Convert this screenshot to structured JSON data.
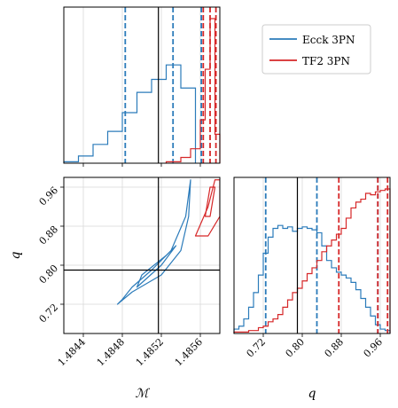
{
  "colors": {
    "eccK": "#2b7bba",
    "tf2": "#d62728",
    "truth": "#000000",
    "grid": "#d9d9d9"
  },
  "legend": {
    "items": [
      {
        "label": "Ecck 3PN",
        "color": "#2b7bba"
      },
      {
        "label": "TF2 3PN",
        "color": "#d62728"
      }
    ],
    "placement": "upper-right-panel"
  },
  "chart_data": [
    {
      "type": "histogram",
      "panel": "M marginal",
      "xlim": [
        1.4842,
        1.4858
      ],
      "xticks": [
        1.4844,
        1.4848,
        1.4852,
        1.4856
      ],
      "grid": true,
      "truth": 1.48517,
      "series": [
        {
          "name": "Eccck 3PN",
          "color": "#2b7bba",
          "edges": [
            1.4842,
            1.48435,
            1.4845,
            1.48465,
            1.4848,
            1.48495,
            1.4851,
            1.48525,
            1.4854,
            1.48555
          ],
          "density": [
            0.01,
            0.05,
            0.13,
            0.22,
            0.35,
            0.49,
            0.58,
            0.68,
            0.52
          ],
          "quantiles": [
            1.48483,
            1.48532,
            1.48561
          ]
        },
        {
          "name": "TF2 3PN",
          "color": "#d62728",
          "edges": [
            1.48525,
            1.4854,
            1.4855,
            1.4856,
            1.48565,
            1.4857,
            1.48575,
            1.4858
          ],
          "density": [
            0.01,
            0.04,
            0.1,
            0.3,
            0.65,
            1.0,
            0.2
          ],
          "quantiles": [
            1.48563,
            1.4857,
            1.48576
          ]
        }
      ]
    },
    {
      "type": "contour",
      "panel": "M vs q",
      "xlim": [
        1.4842,
        1.4858
      ],
      "ylim": [
        0.66,
        0.98
      ],
      "xticks": [
        1.4844,
        1.4848,
        1.4852,
        1.4856
      ],
      "yticks": [
        0.72,
        0.8,
        0.88,
        0.96
      ],
      "xlabel": "ℳ",
      "ylabel": "q",
      "truth": {
        "x": 1.48517,
        "y": 0.79
      },
      "grid": true,
      "series": [
        {
          "name": "Eccck 3PN outer",
          "color": "#2b7bba",
          "points": [
            [
              1.48475,
              0.72
            ],
            [
              1.4849,
              0.745
            ],
            [
              1.4852,
              0.78
            ],
            [
              1.4854,
              0.83
            ],
            [
              1.48548,
              0.9
            ],
            [
              1.4855,
              0.975
            ],
            [
              1.48545,
              0.9
            ],
            [
              1.4853,
              0.83
            ],
            [
              1.4851,
              0.79
            ],
            [
              1.4849,
              0.755
            ],
            [
              1.4848,
              0.73
            ]
          ]
        },
        {
          "name": "Eccck 3PN inner",
          "color": "#2b7bba",
          "points": [
            [
              1.48495,
              0.755
            ],
            [
              1.4852,
              0.8
            ],
            [
              1.48535,
              0.84
            ],
            [
              1.48525,
              0.82
            ],
            [
              1.485,
              0.78
            ]
          ]
        },
        {
          "name": "TF2 3PN outer",
          "color": "#d62728",
          "points": [
            [
              1.48555,
              0.86
            ],
            [
              1.48568,
              0.92
            ],
            [
              1.48575,
              0.975
            ],
            [
              1.4858,
              0.975
            ],
            [
              1.4858,
              0.9
            ],
            [
              1.48568,
              0.86
            ]
          ]
        },
        {
          "name": "TF2 3PN inner",
          "color": "#d62728",
          "points": [
            [
              1.48565,
              0.9
            ],
            [
              1.4857,
              0.96
            ],
            [
              1.48575,
              0.96
            ],
            [
              1.4857,
              0.9
            ]
          ]
        }
      ]
    },
    {
      "type": "histogram",
      "panel": "q marginal",
      "xlim": [
        0.66,
        0.98
      ],
      "xticks": [
        0.72,
        0.8,
        0.88,
        0.96
      ],
      "xlabel": "q",
      "grid": true,
      "truth": 0.79,
      "series": [
        {
          "name": "Eccck 3PN",
          "color": "#2b7bba",
          "edges": [
            0.66,
            0.67,
            0.68,
            0.69,
            0.7,
            0.71,
            0.72,
            0.73,
            0.74,
            0.75,
            0.76,
            0.77,
            0.78,
            0.79,
            0.8,
            0.81,
            0.82,
            0.83,
            0.84,
            0.85,
            0.86,
            0.87,
            0.88,
            0.89,
            0.9,
            0.91,
            0.92,
            0.93,
            0.94,
            0.95,
            0.96,
            0.97,
            0.98
          ],
          "density": [
            0.03,
            0.05,
            0.1,
            0.18,
            0.28,
            0.4,
            0.55,
            0.66,
            0.72,
            0.74,
            0.72,
            0.73,
            0.7,
            0.72,
            0.73,
            0.72,
            0.71,
            0.69,
            0.6,
            0.5,
            0.45,
            0.42,
            0.4,
            0.38,
            0.35,
            0.3,
            0.24,
            0.18,
            0.12,
            0.06,
            0.03,
            0.02
          ],
          "quantiles": [
            0.725,
            0.83,
            0.955
          ]
        },
        {
          "name": "TF2 3PN",
          "color": "#d62728",
          "edges": [
            0.66,
            0.67,
            0.68,
            0.69,
            0.7,
            0.71,
            0.72,
            0.73,
            0.74,
            0.75,
            0.76,
            0.77,
            0.78,
            0.79,
            0.8,
            0.81,
            0.82,
            0.83,
            0.84,
            0.85,
            0.86,
            0.87,
            0.88,
            0.89,
            0.9,
            0.91,
            0.92,
            0.93,
            0.94,
            0.95,
            0.96,
            0.97,
            0.98
          ],
          "density": [
            0.01,
            0.01,
            0.01,
            0.02,
            0.02,
            0.04,
            0.05,
            0.08,
            0.1,
            0.13,
            0.18,
            0.23,
            0.28,
            0.31,
            0.36,
            0.41,
            0.45,
            0.5,
            0.56,
            0.6,
            0.64,
            0.68,
            0.72,
            0.79,
            0.86,
            0.9,
            0.92,
            0.96,
            0.95,
            0.97,
            0.98,
            0.99
          ],
          "quantiles": [
            0.875,
            0.955,
            0.975
          ]
        }
      ]
    }
  ]
}
